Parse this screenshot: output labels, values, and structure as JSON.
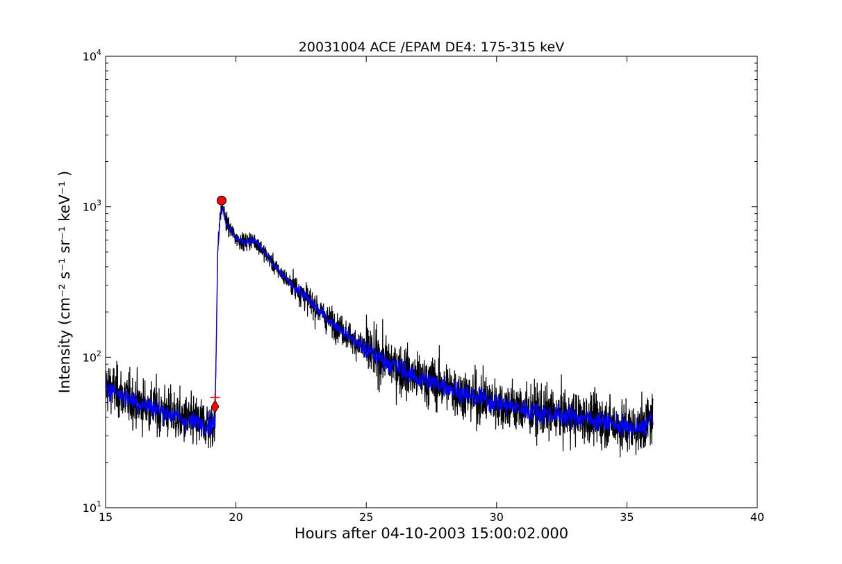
{
  "chart_data": {
    "type": "line",
    "title": "20031004 ACE /EPAM DE4: 175-315 keV",
    "xlabel": "Hours after 04-10-2003 15:00:02.000",
    "ylabel": "Intensity (cm⁻² s⁻¹ sr⁻¹ keV⁻¹ )",
    "xlim": [
      15,
      40
    ],
    "ylim": [
      10,
      10000
    ],
    "y_scale": "log",
    "x_ticks": [
      15,
      20,
      25,
      30,
      35,
      40
    ],
    "x_tick_labels": [
      "15",
      "20",
      "25",
      "30",
      "35",
      "40"
    ],
    "y_ticks": [
      10,
      100,
      1000,
      10000
    ],
    "y_tick_labels": [
      {
        "base": "10",
        "exp": "1"
      },
      {
        "base": "10",
        "exp": "2"
      },
      {
        "base": "10",
        "exp": "3"
      },
      {
        "base": "10",
        "exp": "4"
      }
    ],
    "grid": false,
    "series": [
      {
        "color": "#000000",
        "style": "raw",
        "x": [
          15.0,
          15.5,
          16.0,
          16.5,
          17.0,
          17.5,
          18.0,
          18.5,
          19.0,
          19.2,
          19.3,
          19.4,
          19.5,
          19.6,
          19.8,
          20.0,
          20.3,
          20.6,
          20.8,
          21.0,
          21.5,
          22.0,
          22.5,
          23.0,
          23.5,
          24.0,
          25.0,
          26.0,
          27.0,
          28.0,
          29.0,
          30.0,
          31.0,
          32.0,
          33.0,
          34.0,
          35.0,
          35.5,
          36.0
        ],
        "y": [
          65,
          58,
          52,
          48,
          45,
          42,
          38,
          37,
          36,
          37,
          500,
          900,
          1000,
          800,
          700,
          620,
          580,
          600,
          580,
          520,
          400,
          320,
          270,
          220,
          180,
          155,
          110,
          90,
          72,
          65,
          55,
          50,
          45,
          42,
          40,
          38,
          34,
          33,
          40
        ]
      },
      {
        "color": "#0000ff",
        "style": "smoothed",
        "x": [
          15.0,
          15.5,
          16.0,
          16.5,
          17.0,
          17.5,
          18.0,
          18.5,
          19.0,
          19.2,
          19.3,
          19.4,
          19.5,
          19.6,
          19.8,
          20.0,
          20.3,
          20.6,
          20.8,
          21.0,
          21.5,
          22.0,
          22.5,
          23.0,
          23.5,
          24.0,
          25.0,
          26.0,
          27.0,
          28.0,
          29.0,
          30.0,
          31.0,
          32.0,
          33.0,
          34.0,
          35.0,
          35.5,
          36.0
        ],
        "y": [
          65,
          58,
          52,
          48,
          45,
          42,
          38,
          37,
          36,
          37,
          500,
          900,
          1000,
          800,
          700,
          620,
          580,
          600,
          580,
          520,
          400,
          320,
          270,
          220,
          180,
          155,
          110,
          90,
          72,
          65,
          55,
          50,
          45,
          42,
          40,
          38,
          34,
          33,
          40
        ]
      }
    ],
    "markers": [
      {
        "kind": "circle",
        "x": 19.45,
        "y": 1100,
        "color": "#ff0000"
      },
      {
        "kind": "diamond",
        "x": 19.2,
        "y": 47,
        "color": "#ff0000"
      },
      {
        "kind": "plus",
        "x": 19.2,
        "y": 54,
        "color": "#ff0000"
      }
    ]
  }
}
